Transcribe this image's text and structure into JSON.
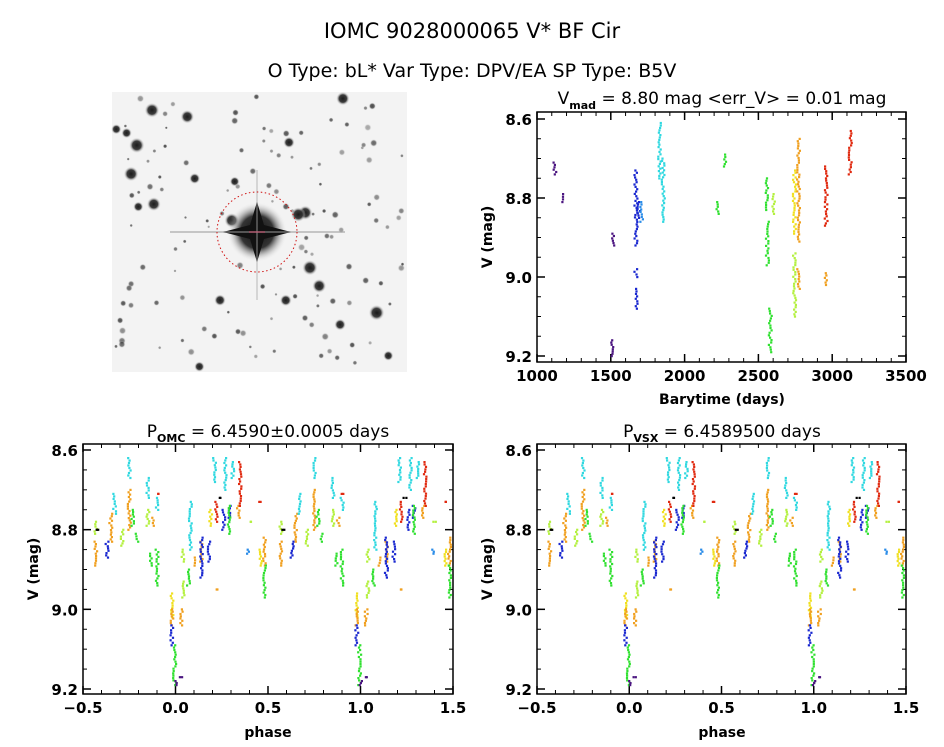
{
  "header": {
    "title": "IOMC 9028000065   V* BF Cir",
    "subtitle": "O Type: bL*  Var Type: DPV/EA  SP Type: B5V"
  },
  "colors": {
    "purple": "#4b1580",
    "blue": "#1a28d0",
    "skyblue": "#2a8ce8",
    "cyan": "#30d8e0",
    "green": "#30e030",
    "lime": "#b4f040",
    "yellow": "#f0e020",
    "orange": "#f0a020",
    "red": "#e02a10",
    "black": "#000000",
    "circle": "#d01010"
  },
  "chart_data": [
    {
      "type": "scatter",
      "id": "lightcurve",
      "title_main": "V",
      "title_sub": "mad",
      "title_rest": " = 8.80 mag <err_V> = 0.01 mag",
      "xlabel": "Barytime (days)",
      "ylabel": "V (mag)",
      "xlim": [
        1000,
        3500
      ],
      "ylim": [
        8.6,
        9.2
      ],
      "y_inverted": true,
      "xticks": [
        "1000",
        "1500",
        "2000",
        "2500",
        "3000",
        "3500"
      ],
      "yticks": [
        "8.6",
        "8.8",
        "9.0",
        "9.2"
      ],
      "clusters_desc": "each cluster: [time_days, mag_min, mag_max, color]",
      "clusters": [
        [
          1122,
          8.71,
          8.74,
          "purple"
        ],
        [
          1176,
          8.79,
          8.81,
          "purple"
        ],
        [
          1516,
          8.89,
          8.92,
          "purple"
        ],
        [
          1511,
          9.16,
          9.2,
          "purple"
        ],
        [
          1670,
          8.73,
          8.92,
          "blue"
        ],
        [
          1670,
          8.98,
          9.0,
          "blue"
        ],
        [
          1670,
          9.03,
          9.08,
          "blue"
        ],
        [
          1690,
          8.81,
          8.85,
          "blue"
        ],
        [
          1708,
          8.81,
          8.86,
          "skyblue"
        ],
        [
          1828,
          8.61,
          8.75,
          "cyan"
        ],
        [
          1855,
          8.7,
          8.86,
          "cyan"
        ],
        [
          2224,
          8.81,
          8.84,
          "green"
        ],
        [
          2274,
          8.69,
          8.72,
          "green"
        ],
        [
          2556,
          8.75,
          8.83,
          "green"
        ],
        [
          2561,
          8.86,
          8.97,
          "green"
        ],
        [
          2579,
          9.08,
          9.19,
          "green"
        ],
        [
          2602,
          8.79,
          8.84,
          "lime"
        ],
        [
          2744,
          8.94,
          9.1,
          "lime"
        ],
        [
          2744,
          8.73,
          8.89,
          "yellow"
        ],
        [
          2771,
          8.65,
          8.91,
          "orange"
        ],
        [
          2771,
          8.98,
          9.03,
          "orange"
        ],
        [
          2959,
          8.72,
          8.87,
          "red"
        ],
        [
          2959,
          8.99,
          9.02,
          "orange"
        ],
        [
          3122,
          8.63,
          8.74,
          "red"
        ]
      ]
    },
    {
      "type": "scatter",
      "id": "phase_omc",
      "title_main": "P",
      "title_sub": "OMC",
      "title_rest": " = 6.4590±0.0005 days",
      "xlabel": "phase",
      "ylabel": "V (mag)",
      "xlim": [
        -0.5,
        1.5
      ],
      "ylim": [
        8.6,
        9.2
      ],
      "y_inverted": true,
      "xticks": [
        "-0.5",
        "0.0",
        "0.5",
        "1.0",
        "1.5"
      ],
      "yticks": [
        "8.6",
        "8.8",
        "9.0",
        "9.2"
      ],
      "clusters_desc": "each cluster: [phase (-0.5..0.5, repeated +1), mag_min, mag_max, color]",
      "clusters": [
        [
          -0.43,
          8.83,
          8.89,
          "orange"
        ],
        [
          -0.43,
          8.78,
          8.81,
          "lime"
        ],
        [
          -0.42,
          8.8,
          8.8,
          "black"
        ],
        [
          -0.37,
          8.83,
          8.87,
          "blue"
        ],
        [
          -0.35,
          8.76,
          8.83,
          "orange"
        ],
        [
          -0.33,
          8.71,
          8.76,
          "cyan"
        ],
        [
          -0.29,
          8.8,
          8.84,
          "lime"
        ],
        [
          -0.25,
          8.7,
          8.8,
          "orange"
        ],
        [
          -0.25,
          8.62,
          8.67,
          "cyan"
        ],
        [
          -0.23,
          8.75,
          8.79,
          "green"
        ],
        [
          -0.21,
          8.81,
          8.83,
          "green"
        ],
        [
          -0.15,
          8.75,
          8.79,
          "lime"
        ],
        [
          -0.12,
          8.77,
          8.79,
          "orange"
        ],
        [
          -0.15,
          8.67,
          8.72,
          "cyan"
        ],
        [
          -0.1,
          8.71,
          8.71,
          "red"
        ],
        [
          -0.1,
          8.72,
          8.75,
          "cyan"
        ],
        [
          -0.13,
          8.86,
          8.89,
          "green"
        ],
        [
          -0.1,
          8.85,
          8.94,
          "green"
        ],
        [
          -0.02,
          8.96,
          9.02,
          "yellow"
        ],
        [
          -0.02,
          9.0,
          9.04,
          "orange"
        ],
        [
          -0.02,
          9.04,
          9.09,
          "blue"
        ],
        [
          -0.005,
          9.09,
          9.19,
          "green"
        ],
        [
          0.0,
          9.18,
          9.19,
          "purple"
        ],
        [
          0.03,
          9.17,
          9.17,
          "purple"
        ],
        [
          0.03,
          9.0,
          9.04,
          "orange"
        ],
        [
          0.04,
          8.93,
          8.97,
          "lime"
        ],
        [
          0.07,
          8.9,
          8.94,
          "green"
        ],
        [
          0.04,
          8.85,
          8.88,
          "lime"
        ],
        [
          0.1,
          8.87,
          8.89,
          "orange"
        ],
        [
          0.08,
          8.73,
          8.85,
          "cyan"
        ],
        [
          0.14,
          8.83,
          8.88,
          "orange"
        ],
        [
          0.14,
          8.82,
          8.92,
          "blue"
        ],
        [
          0.18,
          8.83,
          8.88,
          "blue"
        ],
        [
          0.19,
          8.75,
          8.79,
          "yellow"
        ],
        [
          0.21,
          8.62,
          8.68,
          "cyan"
        ],
        [
          0.22,
          8.73,
          8.78,
          "red"
        ],
        [
          0.22,
          8.95,
          8.95,
          "orange"
        ],
        [
          0.24,
          8.72,
          8.72,
          "black"
        ],
        [
          0.26,
          8.75,
          8.8,
          "blue"
        ],
        [
          0.27,
          8.62,
          8.7,
          "cyan"
        ],
        [
          0.29,
          8.74,
          8.77,
          "blue"
        ],
        [
          0.29,
          8.74,
          8.81,
          "green"
        ],
        [
          0.31,
          8.63,
          8.67,
          "cyan"
        ],
        [
          0.34,
          8.74,
          8.77,
          "orange"
        ],
        [
          0.35,
          8.63,
          8.74,
          "red"
        ],
        [
          0.4,
          8.78,
          8.78,
          "lime"
        ],
        [
          0.39,
          8.85,
          8.86,
          "skyblue"
        ],
        [
          0.46,
          8.73,
          8.73,
          "red"
        ],
        [
          0.48,
          8.82,
          8.89,
          "orange"
        ],
        [
          0.48,
          8.89,
          8.97,
          "green"
        ],
        [
          0.46,
          8.85,
          8.89,
          "yellow"
        ]
      ]
    },
    {
      "type": "scatter",
      "id": "phase_vsx",
      "title_main": "P",
      "title_sub": "VSX",
      "title_rest": " = 6.4589500 days",
      "xlabel": "phase",
      "ylabel": "V (mag)",
      "xlim": [
        -0.5,
        1.5
      ],
      "ylim": [
        8.6,
        9.2
      ],
      "y_inverted": true,
      "xticks": [
        "-0.5",
        "0.0",
        "0.5",
        "1.0",
        "1.5"
      ],
      "yticks": [
        "8.6",
        "8.8",
        "9.0",
        "9.2"
      ],
      "clusters_same_as": "phase_omc"
    }
  ]
}
